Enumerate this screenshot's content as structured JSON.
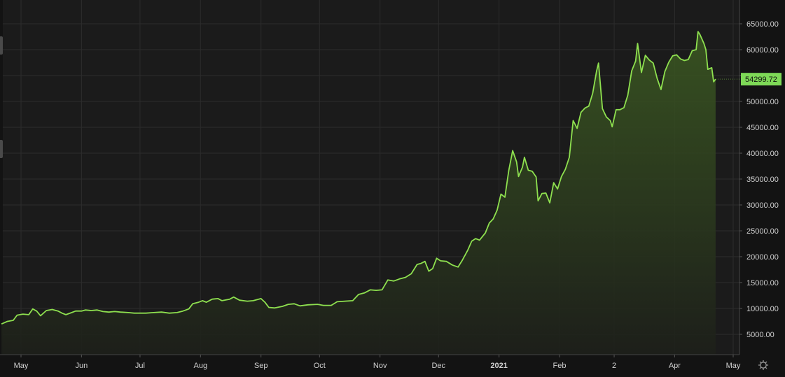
{
  "colors": {
    "background": "#131313",
    "plot_background": "#1b1b1b",
    "grid": "#2c2c2c",
    "line": "#8ee04f",
    "area_top": "#3c5a22",
    "area_bottom": "#1d1f1a",
    "axis_text": "#d0d0d0",
    "price_badge_bg": "#7ed957",
    "price_badge_text": "#111111"
  },
  "settings_icon": "gear-icon",
  "chart_data": {
    "type": "area",
    "title": "",
    "xlabel": "",
    "ylabel": "",
    "ylim": [
      0,
      67000
    ],
    "grid": true,
    "legend": "none",
    "x_range": [
      "2020-04-21",
      "2021-05-04"
    ],
    "y_ticks": [
      5000,
      10000,
      15000,
      20000,
      25000,
      30000,
      35000,
      40000,
      45000,
      50000,
      55000,
      60000,
      65000
    ],
    "y_tick_labels": [
      "5000.00",
      "10000.00",
      "15000.00",
      "20000.00",
      "25000.00",
      "30000.00",
      "35000.00",
      "40000.00",
      "45000.00",
      "50000.00",
      "55000.00",
      "60000.00",
      "65000.00"
    ],
    "x_ticks": [
      {
        "date": "2020-05-01",
        "label": "May",
        "bold": false
      },
      {
        "date": "2020-06-01",
        "label": "Jun",
        "bold": false
      },
      {
        "date": "2020-07-01",
        "label": "Jul",
        "bold": false
      },
      {
        "date": "2020-08-01",
        "label": "Aug",
        "bold": false
      },
      {
        "date": "2020-09-01",
        "label": "Sep",
        "bold": false
      },
      {
        "date": "2020-10-01",
        "label": "Oct",
        "bold": false
      },
      {
        "date": "2020-11-01",
        "label": "Nov",
        "bold": false
      },
      {
        "date": "2020-12-01",
        "label": "Dec",
        "bold": false
      },
      {
        "date": "2021-01-01",
        "label": "2021",
        "bold": true
      },
      {
        "date": "2021-02-01",
        "label": "Feb",
        "bold": false
      },
      {
        "date": "2021-03-01",
        "label": "2",
        "bold": false
      },
      {
        "date": "2021-04-01",
        "label": "Apr",
        "bold": false
      },
      {
        "date": "2021-05-01",
        "label": "May",
        "bold": false
      }
    ],
    "last_price": {
      "value": 54299.72,
      "label": "54299.72"
    },
    "series": [
      {
        "points": [
          [
            "2020-04-21",
            7000
          ],
          [
            "2020-04-24",
            7500
          ],
          [
            "2020-04-27",
            7700
          ],
          [
            "2020-04-29",
            8700
          ],
          [
            "2020-05-02",
            8900
          ],
          [
            "2020-05-05",
            8800
          ],
          [
            "2020-05-07",
            9900
          ],
          [
            "2020-05-09",
            9500
          ],
          [
            "2020-05-11",
            8600
          ],
          [
            "2020-05-14",
            9600
          ],
          [
            "2020-05-17",
            9800
          ],
          [
            "2020-05-20",
            9500
          ],
          [
            "2020-05-22",
            9100
          ],
          [
            "2020-05-24",
            8800
          ],
          [
            "2020-05-27",
            9200
          ],
          [
            "2020-05-29",
            9500
          ],
          [
            "2020-06-01",
            9500
          ],
          [
            "2020-06-03",
            9700
          ],
          [
            "2020-06-06",
            9600
          ],
          [
            "2020-06-09",
            9700
          ],
          [
            "2020-06-12",
            9400
          ],
          [
            "2020-06-15",
            9300
          ],
          [
            "2020-06-18",
            9400
          ],
          [
            "2020-06-21",
            9300
          ],
          [
            "2020-06-25",
            9200
          ],
          [
            "2020-06-28",
            9100
          ],
          [
            "2020-07-01",
            9100
          ],
          [
            "2020-07-04",
            9100
          ],
          [
            "2020-07-08",
            9200
          ],
          [
            "2020-07-12",
            9300
          ],
          [
            "2020-07-16",
            9100
          ],
          [
            "2020-07-20",
            9200
          ],
          [
            "2020-07-23",
            9500
          ],
          [
            "2020-07-26",
            9900
          ],
          [
            "2020-07-28",
            10900
          ],
          [
            "2020-07-31",
            11200
          ],
          [
            "2020-08-02",
            11500
          ],
          [
            "2020-08-04",
            11200
          ],
          [
            "2020-08-07",
            11800
          ],
          [
            "2020-08-10",
            11900
          ],
          [
            "2020-08-12",
            11500
          ],
          [
            "2020-08-16",
            11800
          ],
          [
            "2020-08-18",
            12200
          ],
          [
            "2020-08-21",
            11600
          ],
          [
            "2020-08-25",
            11400
          ],
          [
            "2020-08-28",
            11500
          ],
          [
            "2020-09-01",
            11900
          ],
          [
            "2020-09-03",
            11200
          ],
          [
            "2020-09-05",
            10200
          ],
          [
            "2020-09-08",
            10100
          ],
          [
            "2020-09-12",
            10400
          ],
          [
            "2020-09-15",
            10800
          ],
          [
            "2020-09-18",
            10900
          ],
          [
            "2020-09-21",
            10500
          ],
          [
            "2020-09-25",
            10700
          ],
          [
            "2020-09-30",
            10800
          ],
          [
            "2020-10-03",
            10600
          ],
          [
            "2020-10-07",
            10600
          ],
          [
            "2020-10-10",
            11300
          ],
          [
            "2020-10-14",
            11400
          ],
          [
            "2020-10-18",
            11500
          ],
          [
            "2020-10-21",
            12700
          ],
          [
            "2020-10-24",
            13000
          ],
          [
            "2020-10-27",
            13600
          ],
          [
            "2020-10-30",
            13500
          ],
          [
            "2020-11-02",
            13600
          ],
          [
            "2020-11-05",
            15500
          ],
          [
            "2020-11-08",
            15300
          ],
          [
            "2020-11-11",
            15700
          ],
          [
            "2020-11-14",
            16000
          ],
          [
            "2020-11-17",
            16700
          ],
          [
            "2020-11-20",
            18500
          ],
          [
            "2020-11-22",
            18700
          ],
          [
            "2020-11-24",
            19100
          ],
          [
            "2020-11-26",
            17200
          ],
          [
            "2020-11-28",
            17700
          ],
          [
            "2020-11-30",
            19700
          ],
          [
            "2020-12-02",
            19200
          ],
          [
            "2020-12-05",
            19100
          ],
          [
            "2020-12-08",
            18400
          ],
          [
            "2020-12-11",
            18000
          ],
          [
            "2020-12-13",
            19200
          ],
          [
            "2020-12-16",
            21300
          ],
          [
            "2020-12-18",
            23000
          ],
          [
            "2020-12-20",
            23500
          ],
          [
            "2020-12-22",
            23200
          ],
          [
            "2020-12-25",
            24600
          ],
          [
            "2020-12-27",
            26500
          ],
          [
            "2020-12-29",
            27300
          ],
          [
            "2020-12-31",
            29000
          ],
          [
            "2021-01-02",
            32100
          ],
          [
            "2021-01-04",
            31500
          ],
          [
            "2021-01-06",
            36700
          ],
          [
            "2021-01-08",
            40500
          ],
          [
            "2021-01-10",
            38300
          ],
          [
            "2021-01-11",
            35500
          ],
          [
            "2021-01-13",
            37300
          ],
          [
            "2021-01-14",
            39200
          ],
          [
            "2021-01-16",
            36700
          ],
          [
            "2021-01-18",
            36500
          ],
          [
            "2021-01-20",
            35400
          ],
          [
            "2021-01-21",
            30800
          ],
          [
            "2021-01-23",
            32200
          ],
          [
            "2021-01-25",
            32300
          ],
          [
            "2021-01-27",
            30400
          ],
          [
            "2021-01-29",
            34300
          ],
          [
            "2021-01-31",
            33100
          ],
          [
            "2021-02-02",
            35500
          ],
          [
            "2021-02-04",
            36900
          ],
          [
            "2021-02-06",
            39200
          ],
          [
            "2021-02-08",
            46300
          ],
          [
            "2021-02-10",
            44800
          ],
          [
            "2021-02-12",
            47900
          ],
          [
            "2021-02-14",
            48700
          ],
          [
            "2021-02-16",
            49100
          ],
          [
            "2021-02-18",
            51600
          ],
          [
            "2021-02-20",
            55900
          ],
          [
            "2021-02-21",
            57400
          ],
          [
            "2021-02-23",
            48600
          ],
          [
            "2021-02-25",
            47000
          ],
          [
            "2021-02-27",
            46300
          ],
          [
            "2021-02-28",
            45100
          ],
          [
            "2021-03-02",
            48400
          ],
          [
            "2021-03-04",
            48400
          ],
          [
            "2021-03-06",
            48800
          ],
          [
            "2021-03-08",
            51200
          ],
          [
            "2021-03-10",
            55900
          ],
          [
            "2021-03-12",
            57800
          ],
          [
            "2021-03-13",
            61200
          ],
          [
            "2021-03-15",
            55600
          ],
          [
            "2021-03-17",
            58900
          ],
          [
            "2021-03-19",
            58000
          ],
          [
            "2021-03-21",
            57400
          ],
          [
            "2021-03-23",
            54500
          ],
          [
            "2021-03-25",
            52300
          ],
          [
            "2021-03-27",
            55800
          ],
          [
            "2021-03-29",
            57600
          ],
          [
            "2021-03-31",
            58800
          ],
          [
            "2021-04-02",
            59000
          ],
          [
            "2021-04-04",
            58200
          ],
          [
            "2021-04-06",
            57900
          ],
          [
            "2021-04-08",
            58100
          ],
          [
            "2021-04-10",
            59800
          ],
          [
            "2021-04-12",
            60000
          ],
          [
            "2021-04-13",
            63500
          ],
          [
            "2021-04-14",
            62900
          ],
          [
            "2021-04-16",
            61200
          ],
          [
            "2021-04-17",
            60000
          ],
          [
            "2021-04-18",
            56200
          ],
          [
            "2021-04-20",
            56500
          ],
          [
            "2021-04-21",
            53800
          ],
          [
            "2021-04-22",
            54299.72
          ]
        ]
      }
    ]
  }
}
